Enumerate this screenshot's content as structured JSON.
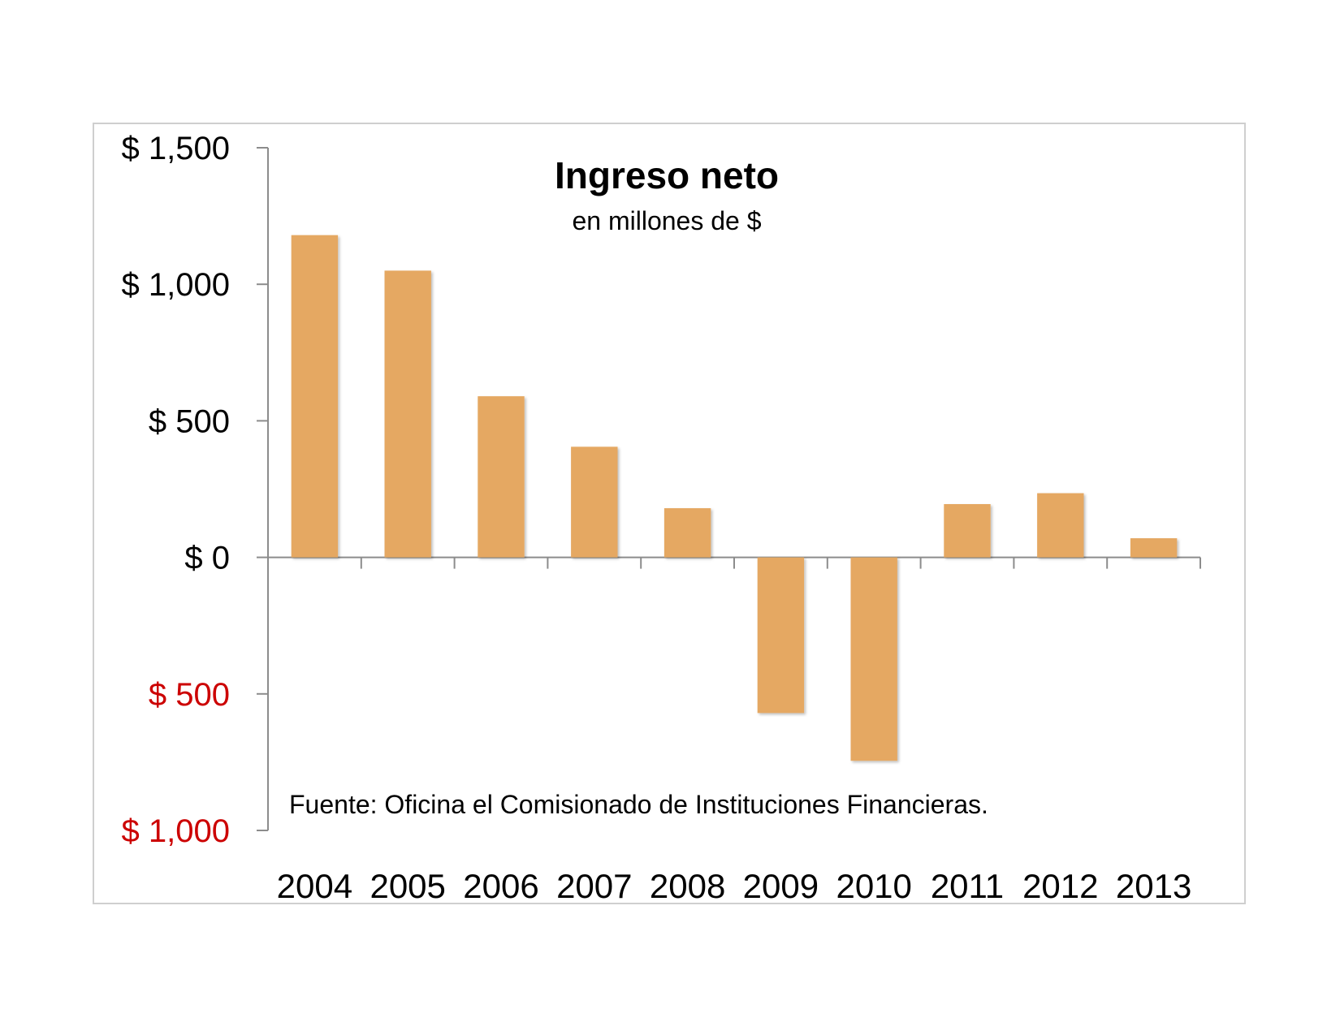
{
  "chart_data": {
    "type": "bar",
    "title": "Ingreso neto",
    "subtitle": "en millones de $",
    "source": "Fuente: Oficina el Comisionado de Instituciones Financieras.",
    "categories": [
      "2004",
      "2005",
      "2006",
      "2007",
      "2008",
      "2009",
      "2010",
      "2011",
      "2012",
      "2013"
    ],
    "values": [
      1180,
      1050,
      590,
      405,
      180,
      -570,
      -745,
      195,
      235,
      70
    ],
    "ylim": [
      -1000,
      1500
    ],
    "yticks": [
      {
        "value": 1500,
        "label": "$ 1,500",
        "color": "#000000"
      },
      {
        "value": 1000,
        "label": "$ 1,000",
        "color": "#000000"
      },
      {
        "value": 500,
        "label": "$ 500",
        "color": "#000000"
      },
      {
        "value": 0,
        "label": "$ 0",
        "color": "#000000"
      },
      {
        "value": -500,
        "label": "$ 500",
        "color": "#cc0000"
      },
      {
        "value": -1000,
        "label": "$ 1,000",
        "color": "#cc0000"
      }
    ],
    "bar_color": "#e5a862",
    "axis_color": "#8c8c8c",
    "grid": false,
    "legend": "none"
  }
}
